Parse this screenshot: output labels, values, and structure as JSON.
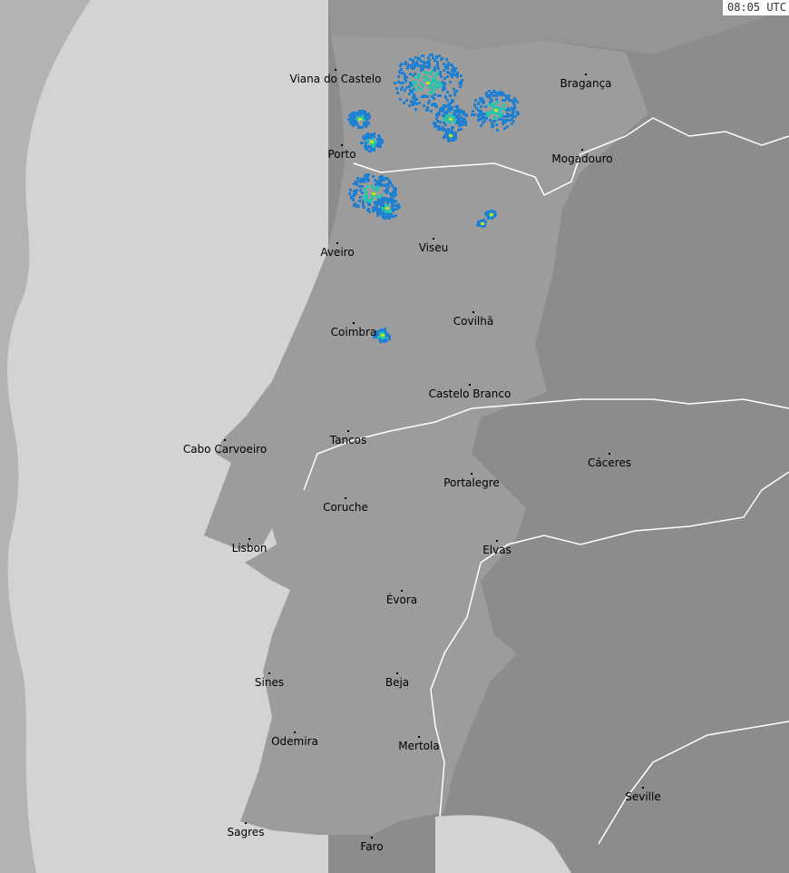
{
  "timestamp": "08:05 UTC",
  "colors": {
    "outside_range": "#b3b3b3",
    "sea": "#d3d3d3",
    "portugal": "#9c9c9c",
    "spain": "#8c8c8c",
    "border": "#ffffff",
    "rain_light": "#1f7fd0",
    "rain_medium": "#22c6b0",
    "rain_heavy": "#c8e020"
  },
  "cities": [
    "Viana do Castelo",
    "Bragança",
    "Porto",
    "Mogadouro",
    "Aveiro",
    "Viseu",
    "Coimbra",
    "Covilhã",
    "Castelo Branco",
    "Tancos",
    "Cabo Carvoeiro",
    "Portalegre",
    "Cáceres",
    "Coruche",
    "Lisbon",
    "Elvas",
    "Évora",
    "Sines",
    "Beja",
    "Odemira",
    "Mertola",
    "Seville",
    "Sagres",
    "Faro"
  ]
}
